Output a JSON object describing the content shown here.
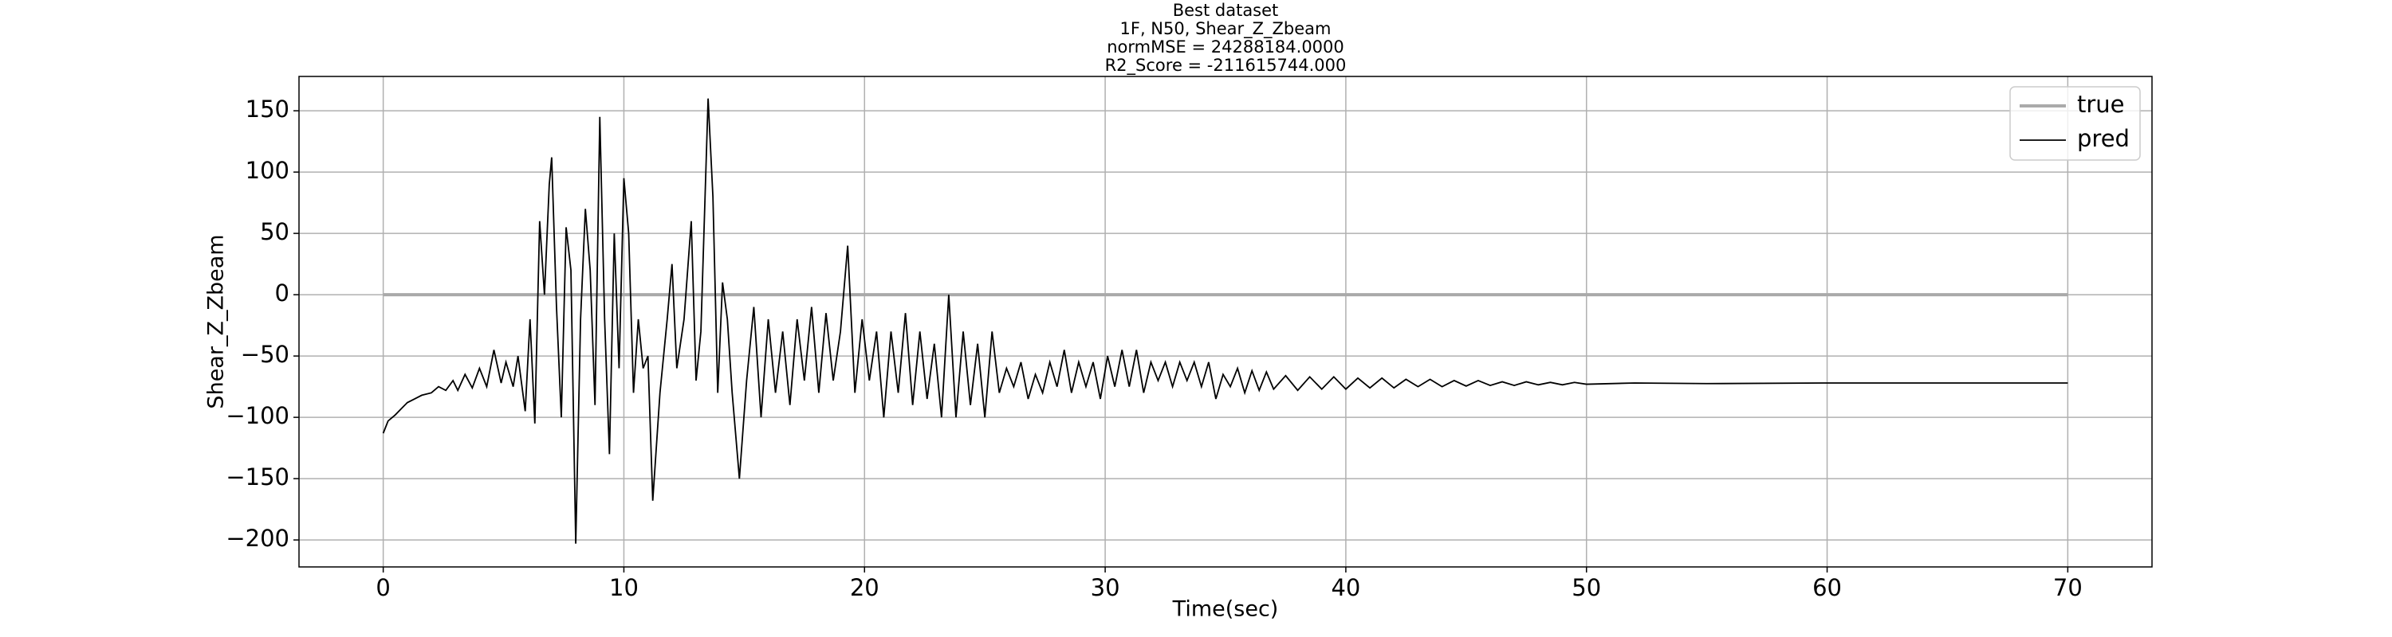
{
  "chart_data": {
    "type": "line",
    "title": [
      "Best dataset",
      "1F, N50, Shear_Z_Zbeam",
      "normMSE = 24288184.0000",
      "R2_Score = -211615744.000"
    ],
    "x_label": "Time(sec)",
    "y_label": "Shear_Z_Zbeam",
    "xlim": [
      -3.5,
      73.5
    ],
    "ylim": [
      -222,
      178
    ],
    "xticks": [
      0,
      10,
      20,
      30,
      40,
      50,
      60,
      70
    ],
    "yticks": [
      {
        "value": -200,
        "label": "−200"
      },
      {
        "value": -150,
        "label": "−150"
      },
      {
        "value": -100,
        "label": "−100"
      },
      {
        "value": -50,
        "label": "−50"
      },
      0,
      50,
      100,
      150
    ],
    "grid": true,
    "legend": "upper right",
    "series": [
      {
        "name": "true",
        "color": "#aaaaaa",
        "x": [
          0,
          70
        ],
        "values": [
          0,
          0
        ]
      },
      {
        "name": "pred",
        "color": "#000000",
        "x": [
          0,
          0.2,
          0.5,
          0.8,
          1,
          1.3,
          1.6,
          2,
          2.3,
          2.6,
          2.9,
          3.1,
          3.4,
          3.7,
          4.0,
          4.3,
          4.6,
          4.9,
          5.1,
          5.4,
          5.6,
          5.9,
          6.1,
          6.3,
          6.5,
          6.7,
          6.9,
          7.0,
          7.2,
          7.4,
          7.6,
          7.8,
          8.0,
          8.2,
          8.4,
          8.6,
          8.8,
          9.0,
          9.2,
          9.4,
          9.6,
          9.8,
          10.0,
          10.2,
          10.4,
          10.6,
          10.8,
          11.0,
          11.2,
          11.5,
          11.8,
          12.0,
          12.2,
          12.5,
          12.8,
          13.0,
          13.2,
          13.5,
          13.7,
          13.9,
          14.1,
          14.3,
          14.5,
          14.8,
          15.1,
          15.4,
          15.7,
          16.0,
          16.3,
          16.6,
          16.9,
          17.2,
          17.5,
          17.8,
          18.1,
          18.4,
          18.7,
          19.0,
          19.3,
          19.6,
          19.9,
          20.2,
          20.5,
          20.8,
          21.1,
          21.4,
          21.7,
          22.0,
          22.3,
          22.6,
          22.9,
          23.2,
          23.5,
          23.8,
          24.1,
          24.4,
          24.7,
          25.0,
          25.3,
          25.6,
          25.9,
          26.2,
          26.5,
          26.8,
          27.1,
          27.4,
          27.7,
          28.0,
          28.3,
          28.6,
          28.9,
          29.2,
          29.5,
          29.8,
          30.1,
          30.4,
          30.7,
          31.0,
          31.3,
          31.6,
          31.9,
          32.2,
          32.5,
          32.8,
          33.1,
          33.4,
          33.7,
          34.0,
          34.3,
          34.6,
          34.9,
          35.2,
          35.5,
          35.8,
          36.1,
          36.4,
          36.7,
          37.0,
          37.5,
          38,
          38.5,
          39,
          39.5,
          40,
          40.5,
          41,
          41.5,
          42,
          42.5,
          43,
          43.5,
          44,
          44.5,
          45,
          45.5,
          46,
          46.5,
          47,
          47.5,
          48,
          48.5,
          49,
          49.5,
          50,
          52,
          55,
          60,
          65,
          70
        ],
        "values": [
          -113,
          -103,
          -98,
          -92,
          -88,
          -85,
          -82,
          -80,
          -75,
          -78,
          -70,
          -78,
          -65,
          -76,
          -60,
          -75,
          -45,
          -72,
          -55,
          -75,
          -50,
          -95,
          -20,
          -105,
          60,
          0,
          90,
          112,
          -10,
          -100,
          55,
          20,
          -203,
          -20,
          70,
          20,
          -90,
          145,
          -20,
          -130,
          50,
          -60,
          95,
          50,
          -80,
          -20,
          -60,
          -50,
          -168,
          -80,
          -20,
          25,
          -60,
          -20,
          60,
          -70,
          -30,
          160,
          80,
          -80,
          10,
          -20,
          -80,
          -150,
          -70,
          -10,
          -100,
          -20,
          -80,
          -30,
          -90,
          -20,
          -70,
          -10,
          -80,
          -15,
          -70,
          -30,
          40,
          -80,
          -20,
          -70,
          -30,
          -100,
          -30,
          -80,
          -15,
          -90,
          -30,
          -85,
          -40,
          -100,
          0,
          -100,
          -30,
          -90,
          -40,
          -100,
          -30,
          -80,
          -60,
          -75,
          -55,
          -85,
          -65,
          -80,
          -55,
          -75,
          -45,
          -80,
          -55,
          -75,
          -55,
          -85,
          -50,
          -75,
          -45,
          -75,
          -45,
          -80,
          -55,
          -70,
          -55,
          -75,
          -55,
          -70,
          -55,
          -75,
          -55,
          -85,
          -65,
          -75,
          -60,
          -80,
          -62,
          -78,
          -63,
          -77,
          -66,
          -78,
          -67,
          -77,
          -67,
          -77,
          -68,
          -76,
          -68,
          -76,
          -69,
          -75,
          -69,
          -75,
          -70,
          -74.5,
          -70,
          -74,
          -71,
          -74,
          -71,
          -73.5,
          -71.5,
          -73.5,
          -71.5,
          -73,
          -72,
          -72.5,
          -72,
          -72,
          -72
        ]
      }
    ]
  }
}
